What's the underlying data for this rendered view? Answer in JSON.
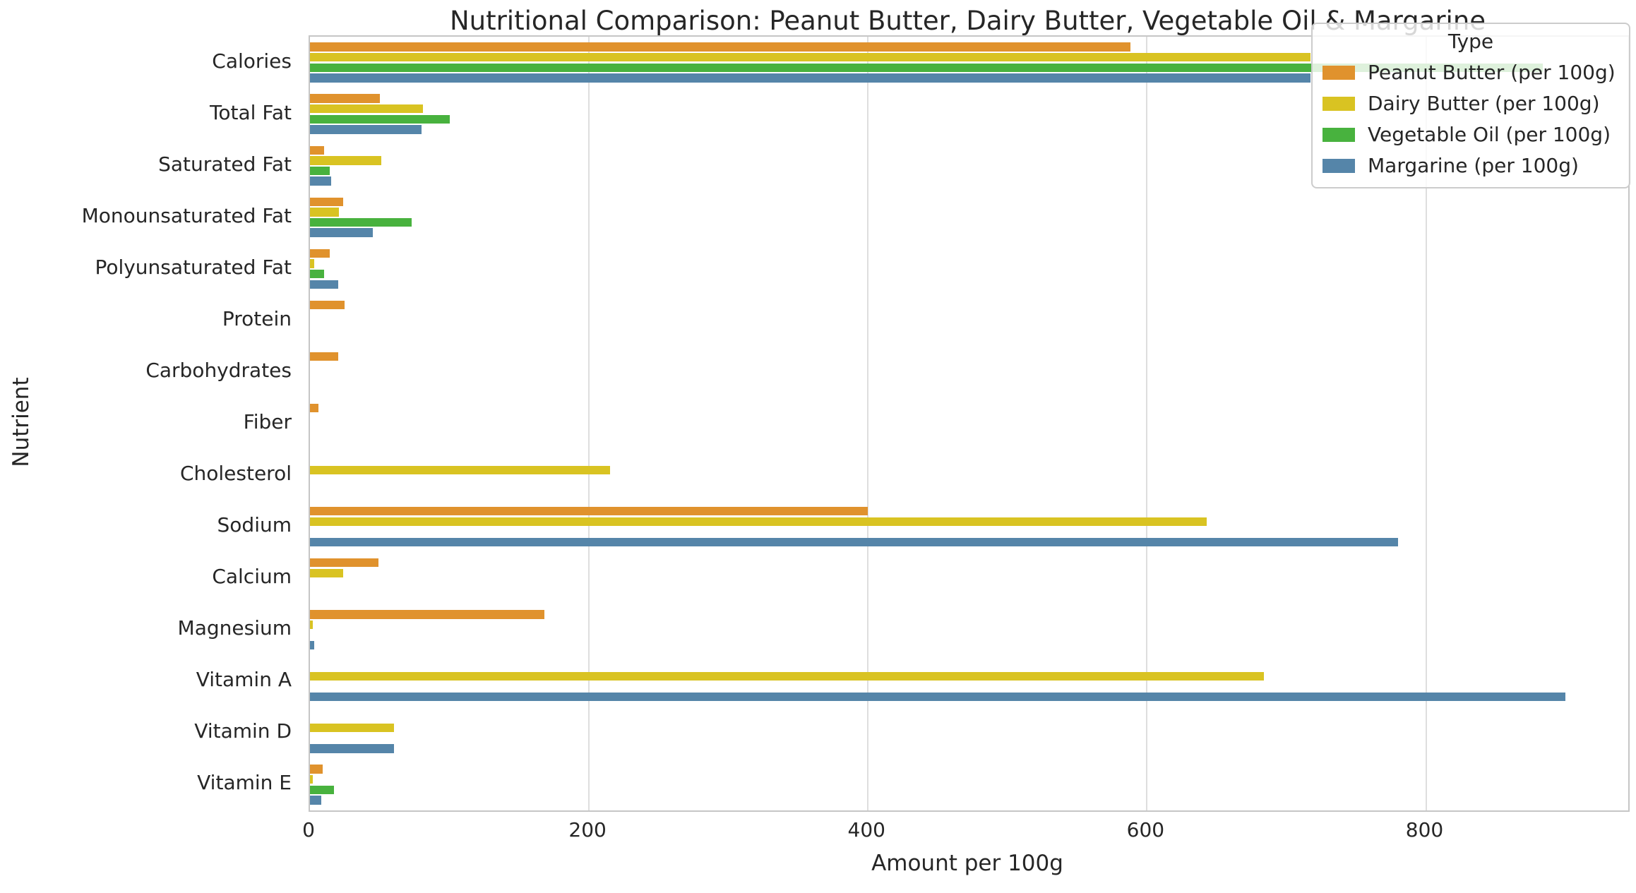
{
  "page_title": "Nutritional Comparison: Peanut Butter, Dairy Butter, Vegetable Oil & Margarine",
  "chart_data": {
    "type": "bar",
    "orientation": "horizontal",
    "title": "Nutritional Comparison: Peanut Butter, Dairy Butter, Vegetable Oil & Margarine",
    "xlabel": "Amount per 100g",
    "ylabel": "Nutrient",
    "categories": [
      "Calories",
      "Total Fat",
      "Saturated Fat",
      "Monounsaturated Fat",
      "Polyunsaturated Fat",
      "Protein",
      "Carbohydrates",
      "Fiber",
      "Cholesterol",
      "Sodium",
      "Calcium",
      "Magnesium",
      "Vitamin A",
      "Vitamin D",
      "Vitamin E"
    ],
    "series": [
      {
        "name": "Peanut Butter (per 100g)",
        "color": "#E0922D",
        "values": [
          588,
          50,
          10,
          24,
          14,
          25,
          20,
          6,
          0,
          400,
          49,
          168,
          0,
          0,
          9
        ]
      },
      {
        "name": "Dairy Butter (per 100g)",
        "color": "#D9C322",
        "values": [
          717,
          81,
          51,
          21,
          3,
          0,
          0,
          0,
          215,
          643,
          24,
          2,
          684,
          60,
          2
        ]
      },
      {
        "name": "Vegetable Oil (per 100g)",
        "color": "#48B23E",
        "values": [
          884,
          100,
          14,
          73,
          10,
          0,
          0,
          0,
          0,
          0,
          0,
          0,
          0,
          0,
          17
        ]
      },
      {
        "name": "Margarine (per 100g)",
        "color": "#5585A9",
        "values": [
          717,
          80,
          15,
          45,
          20,
          0,
          0,
          0,
          0,
          780,
          0,
          3,
          900,
          60,
          8
        ]
      }
    ],
    "x_ticks": [
      0,
      200,
      400,
      600,
      800
    ],
    "xlim": [
      0,
      945
    ],
    "grid": "vertical",
    "legend": {
      "title": "Type",
      "position": "upper right"
    }
  },
  "colors": {
    "text": "#262626",
    "grid": "#dedede",
    "spine": "#c6c6c6",
    "legend_background": "rgba(255,255,255,0.82)",
    "legend_border": "#cccccc"
  }
}
